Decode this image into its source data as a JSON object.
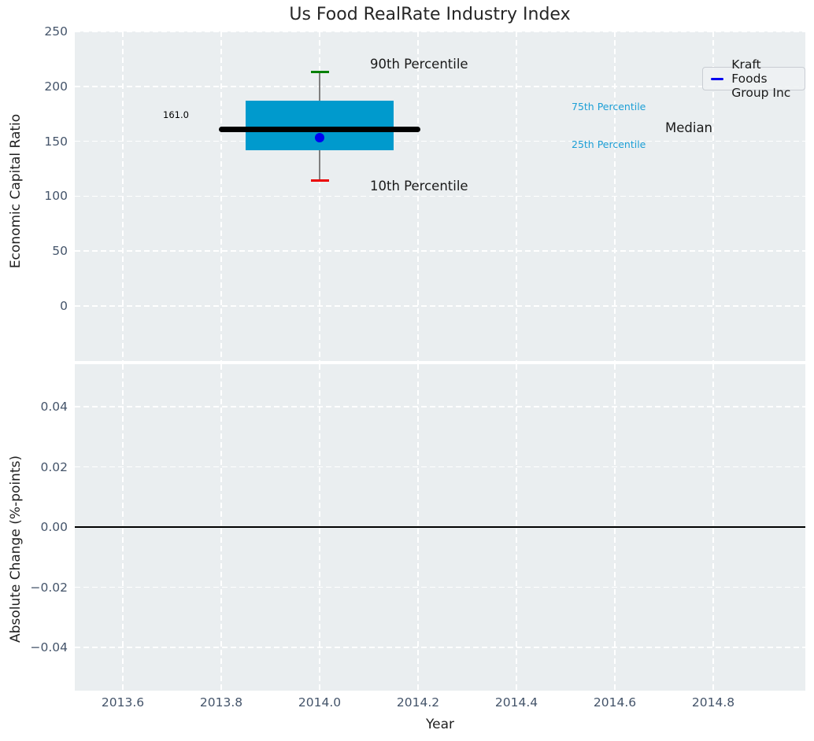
{
  "figure": {
    "title": "Us Food RealRate Industry Index",
    "background": "#ffffff",
    "axes_background": "#EAEEF0"
  },
  "legend": {
    "label": "Kraft Foods Group Inc",
    "line_color": "#0000F0",
    "position": "upper right"
  },
  "annotations": {
    "p90": "90th Percentile",
    "p10": "10th Percentile",
    "p75": "75th Percentile",
    "p25": "25th Percentile",
    "median": "Median",
    "median_value": "161.0"
  },
  "colors": {
    "box_fill": "#009ACD",
    "median_line": "#000000",
    "whisker": "#7F7F7F",
    "cap_90th": "#008000",
    "cap_10th": "#EB0000",
    "marker": "#0000F0",
    "percentile_label": "#1C9FD6",
    "tick_label": "#44546A",
    "grid": "#FFFFFF",
    "zero_line": "#000000"
  },
  "chart_data": [
    {
      "type": "box",
      "title": "Us Food RealRate Industry Index",
      "ylabel": "Economic Capital Ratio",
      "ylim": [
        -50,
        250
      ],
      "yticks": [
        250,
        200,
        150,
        100,
        50,
        0
      ],
      "ytick_labels": [
        "250",
        "200",
        "150",
        "100",
        "50",
        "0"
      ],
      "x_center": 2014.0,
      "box": {
        "p10": 114,
        "p25": 142,
        "median": 161,
        "p75": 187,
        "p90": 213
      },
      "median_value_label": "161.0",
      "series": [
        {
          "name": "Kraft Foods Group Inc",
          "x": 2014.0,
          "y": 153,
          "marker": "circle",
          "color": "#0000F0"
        }
      ],
      "legend_entries": [
        "Kraft Foods Group Inc"
      ],
      "grid": true,
      "legend_position": "upper right"
    },
    {
      "type": "line",
      "ylabel": "Absolute Change (%-points)",
      "xlabel": "Year",
      "ylim": [
        -0.055,
        0.055
      ],
      "yticks": [
        0.04,
        0.02,
        0.0,
        -0.02,
        -0.04
      ],
      "ytick_labels": [
        "0.04",
        "0.02",
        "0.00",
        "−0.02",
        "−0.04"
      ],
      "xlim": [
        2013.5,
        2014.99
      ],
      "xticks": [
        2013.6,
        2013.8,
        2014.0,
        2014.2,
        2014.4,
        2014.6,
        2014.8
      ],
      "xtick_labels": [
        "2013.6",
        "2013.8",
        "2014.0",
        "2014.2",
        "2014.4",
        "2014.6",
        "2014.8"
      ],
      "zero_line": 0.0,
      "series": [],
      "grid": true
    }
  ]
}
